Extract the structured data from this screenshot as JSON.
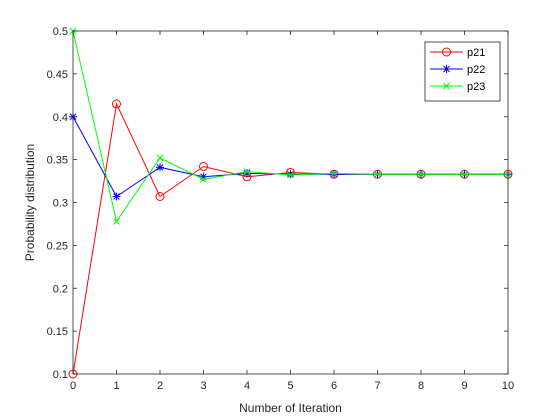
{
  "chart_data": {
    "type": "line",
    "title": "",
    "xlabel": "Number of Iteration",
    "ylabel": "Probability distribution",
    "xlim": [
      0,
      10
    ],
    "ylim": [
      0.1,
      0.5
    ],
    "xticks": [
      "0",
      "1",
      "2",
      "3",
      "4",
      "5",
      "6",
      "7",
      "8",
      "9",
      "10"
    ],
    "yticks": [
      "0.1",
      "0.15",
      "0.2",
      "0.25",
      "0.3",
      "0.35",
      "0.4",
      "0.45",
      "0.5"
    ],
    "grid": false,
    "legend_position": "top-right",
    "x": [
      0,
      1,
      2,
      3,
      4,
      5,
      6,
      7,
      8,
      9,
      10
    ],
    "series": [
      {
        "name": "p21",
        "color": "#ff0000",
        "marker": "circle",
        "values": [
          0.1,
          0.415,
          0.307,
          0.342,
          0.33,
          0.335,
          0.333,
          0.333,
          0.333,
          0.333,
          0.333
        ]
      },
      {
        "name": "p22",
        "color": "#0000ff",
        "marker": "asterisk",
        "values": [
          0.4,
          0.307,
          0.341,
          0.33,
          0.334,
          0.333,
          0.333,
          0.333,
          0.333,
          0.333,
          0.333
        ]
      },
      {
        "name": "p23",
        "color": "#00ff00",
        "marker": "cross",
        "values": [
          0.5,
          0.278,
          0.352,
          0.327,
          0.336,
          0.332,
          0.334,
          0.333,
          0.333,
          0.333,
          0.333
        ]
      }
    ]
  }
}
